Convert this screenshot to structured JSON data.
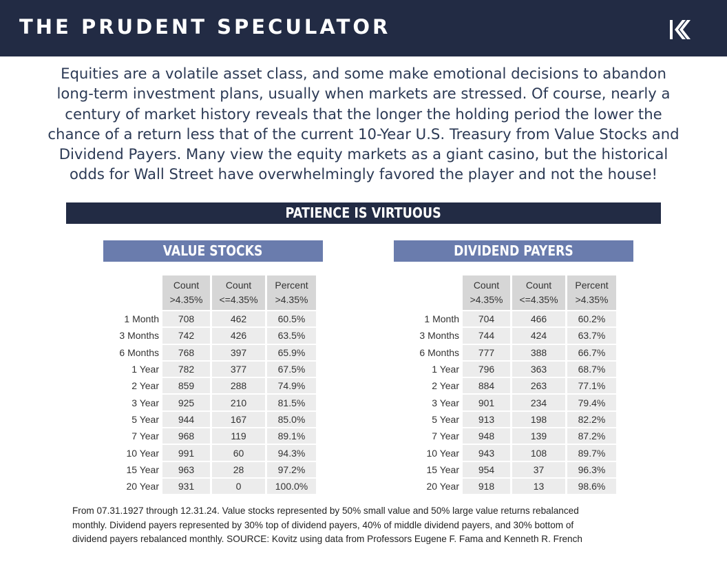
{
  "header": {
    "title": "THE PRUDENT SPECULATOR",
    "logo_icon": "k-chevron-logo-icon",
    "background_color": "#222b44"
  },
  "intro": {
    "lines": [
      "Equities are a volatile asset class, and some make emotional decisions to abandon",
      "long-term investment plans, usually when markets are stressed. Of course, nearly a",
      "century of market history reveals that the longer the holding period the lower the",
      "chance of a return less that of the current 10-Year U.S. Treasury from Value Stocks and",
      "Dividend Payers. Many view the equity markets as a giant casino, but the historical",
      "odds for Wall Street have overwhelmingly favored the player and not the house!"
    ]
  },
  "banner": {
    "title": "PATIENCE IS VIRTUOUS"
  },
  "tables": {
    "value_stocks": {
      "title": "VALUE STOCKS",
      "headers": [
        "Count\n>4.35%",
        "Count\n<=4.35%",
        "Percent\n>4.35%"
      ],
      "header_lines": [
        [
          "Count",
          ">4.35%"
        ],
        [
          "Count",
          "<=4.35%"
        ],
        [
          "Percent",
          ">4.35%"
        ]
      ],
      "rows": [
        {
          "label": "1 Month",
          "above": "708",
          "below": "462",
          "pct": "60.5%"
        },
        {
          "label": "3 Months",
          "above": "742",
          "below": "426",
          "pct": "63.5%"
        },
        {
          "label": "6 Months",
          "above": "768",
          "below": "397",
          "pct": "65.9%"
        },
        {
          "label": "1 Year",
          "above": "782",
          "below": "377",
          "pct": "67.5%"
        },
        {
          "label": "2 Year",
          "above": "859",
          "below": "288",
          "pct": "74.9%"
        },
        {
          "label": "3 Year",
          "above": "925",
          "below": "210",
          "pct": "81.5%"
        },
        {
          "label": "5 Year",
          "above": "944",
          "below": "167",
          "pct": "85.0%"
        },
        {
          "label": "7 Year",
          "above": "968",
          "below": "119",
          "pct": "89.1%"
        },
        {
          "label": "10 Year",
          "above": "991",
          "below": "60",
          "pct": "94.3%"
        },
        {
          "label": "15 Year",
          "above": "963",
          "below": "28",
          "pct": "97.2%"
        },
        {
          "label": "20 Year",
          "above": "931",
          "below": "0",
          "pct": "100.0%"
        }
      ]
    },
    "dividend_payers": {
      "title": "DIVIDEND PAYERS",
      "header_lines": [
        [
          "Count",
          ">4.35%"
        ],
        [
          "Count",
          "<=4.35%"
        ],
        [
          "Percent",
          ">4.35%"
        ]
      ],
      "rows": [
        {
          "label": "1 Month",
          "above": "704",
          "below": "466",
          "pct": "60.2%"
        },
        {
          "label": "3 Months",
          "above": "744",
          "below": "424",
          "pct": "63.7%"
        },
        {
          "label": "6 Months",
          "above": "777",
          "below": "388",
          "pct": "66.7%"
        },
        {
          "label": "1 Year",
          "above": "796",
          "below": "363",
          "pct": "68.7%"
        },
        {
          "label": "2 Year",
          "above": "884",
          "below": "263",
          "pct": "77.1%"
        },
        {
          "label": "3 Year",
          "above": "901",
          "below": "234",
          "pct": "79.4%"
        },
        {
          "label": "5 Year",
          "above": "913",
          "below": "198",
          "pct": "82.2%"
        },
        {
          "label": "7 Year",
          "above": "948",
          "below": "139",
          "pct": "87.2%"
        },
        {
          "label": "10 Year",
          "above": "943",
          "below": "108",
          "pct": "89.7%"
        },
        {
          "label": "15 Year",
          "above": "954",
          "below": "37",
          "pct": "96.3%"
        },
        {
          "label": "20 Year",
          "above": "918",
          "below": "13",
          "pct": "98.6%"
        }
      ]
    }
  },
  "footnote": {
    "lines": [
      "From 07.31.1927 through 12.31.24. Value stocks represented by 50% small value and 50% large value returns rebalanced",
      "monthly.  Dividend payers represented by 30% top of dividend payers, 40% of middle dividend payers, and 30% bottom of",
      "dividend payers rebalanced monthly. SOURCE: Kovitz using data from Professors Eugene F. Fama and Kenneth R. French"
    ]
  }
}
